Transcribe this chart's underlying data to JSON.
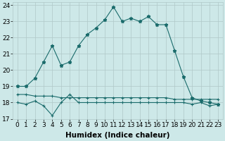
{
  "xlabel": "Humidex (Indice chaleur)",
  "ylabel": "",
  "background_color": "#cde8e8",
  "grid_color": "#b0c8c8",
  "line_color": "#1a6b6b",
  "x": [
    0,
    1,
    2,
    3,
    4,
    5,
    6,
    7,
    8,
    9,
    10,
    11,
    12,
    13,
    14,
    15,
    16,
    17,
    18,
    19,
    20,
    21,
    22,
    23
  ],
  "y_main": [
    19.0,
    19.0,
    19.5,
    20.5,
    21.5,
    20.3,
    20.5,
    21.5,
    22.2,
    22.6,
    23.1,
    23.9,
    23.0,
    23.2,
    23.0,
    23.3,
    22.8,
    22.8,
    21.2,
    19.6,
    18.3,
    18.1,
    18.0,
    17.9
  ],
  "y_flat1": [
    18.5,
    18.5,
    18.4,
    18.4,
    18.4,
    18.3,
    18.3,
    18.3,
    18.3,
    18.3,
    18.3,
    18.3,
    18.3,
    18.3,
    18.3,
    18.3,
    18.3,
    18.3,
    18.2,
    18.2,
    18.2,
    18.2,
    18.2,
    18.2
  ],
  "y_zigzag": [
    18.0,
    17.9,
    18.1,
    17.8,
    17.2,
    18.0,
    18.5,
    18.0,
    18.0,
    18.0,
    18.0,
    18.0,
    18.0,
    18.0,
    18.0,
    18.0,
    18.0,
    18.0,
    18.0,
    18.0,
    17.9,
    18.0,
    17.8,
    17.9
  ],
  "ylim": [
    17.0,
    24.2
  ],
  "xlim": [
    -0.5,
    23.5
  ],
  "yticks": [
    17,
    18,
    19,
    20,
    21,
    22,
    23,
    24
  ],
  "title_fontsize": 7.5,
  "label_fontsize": 7.5,
  "tick_fontsize": 6.5
}
